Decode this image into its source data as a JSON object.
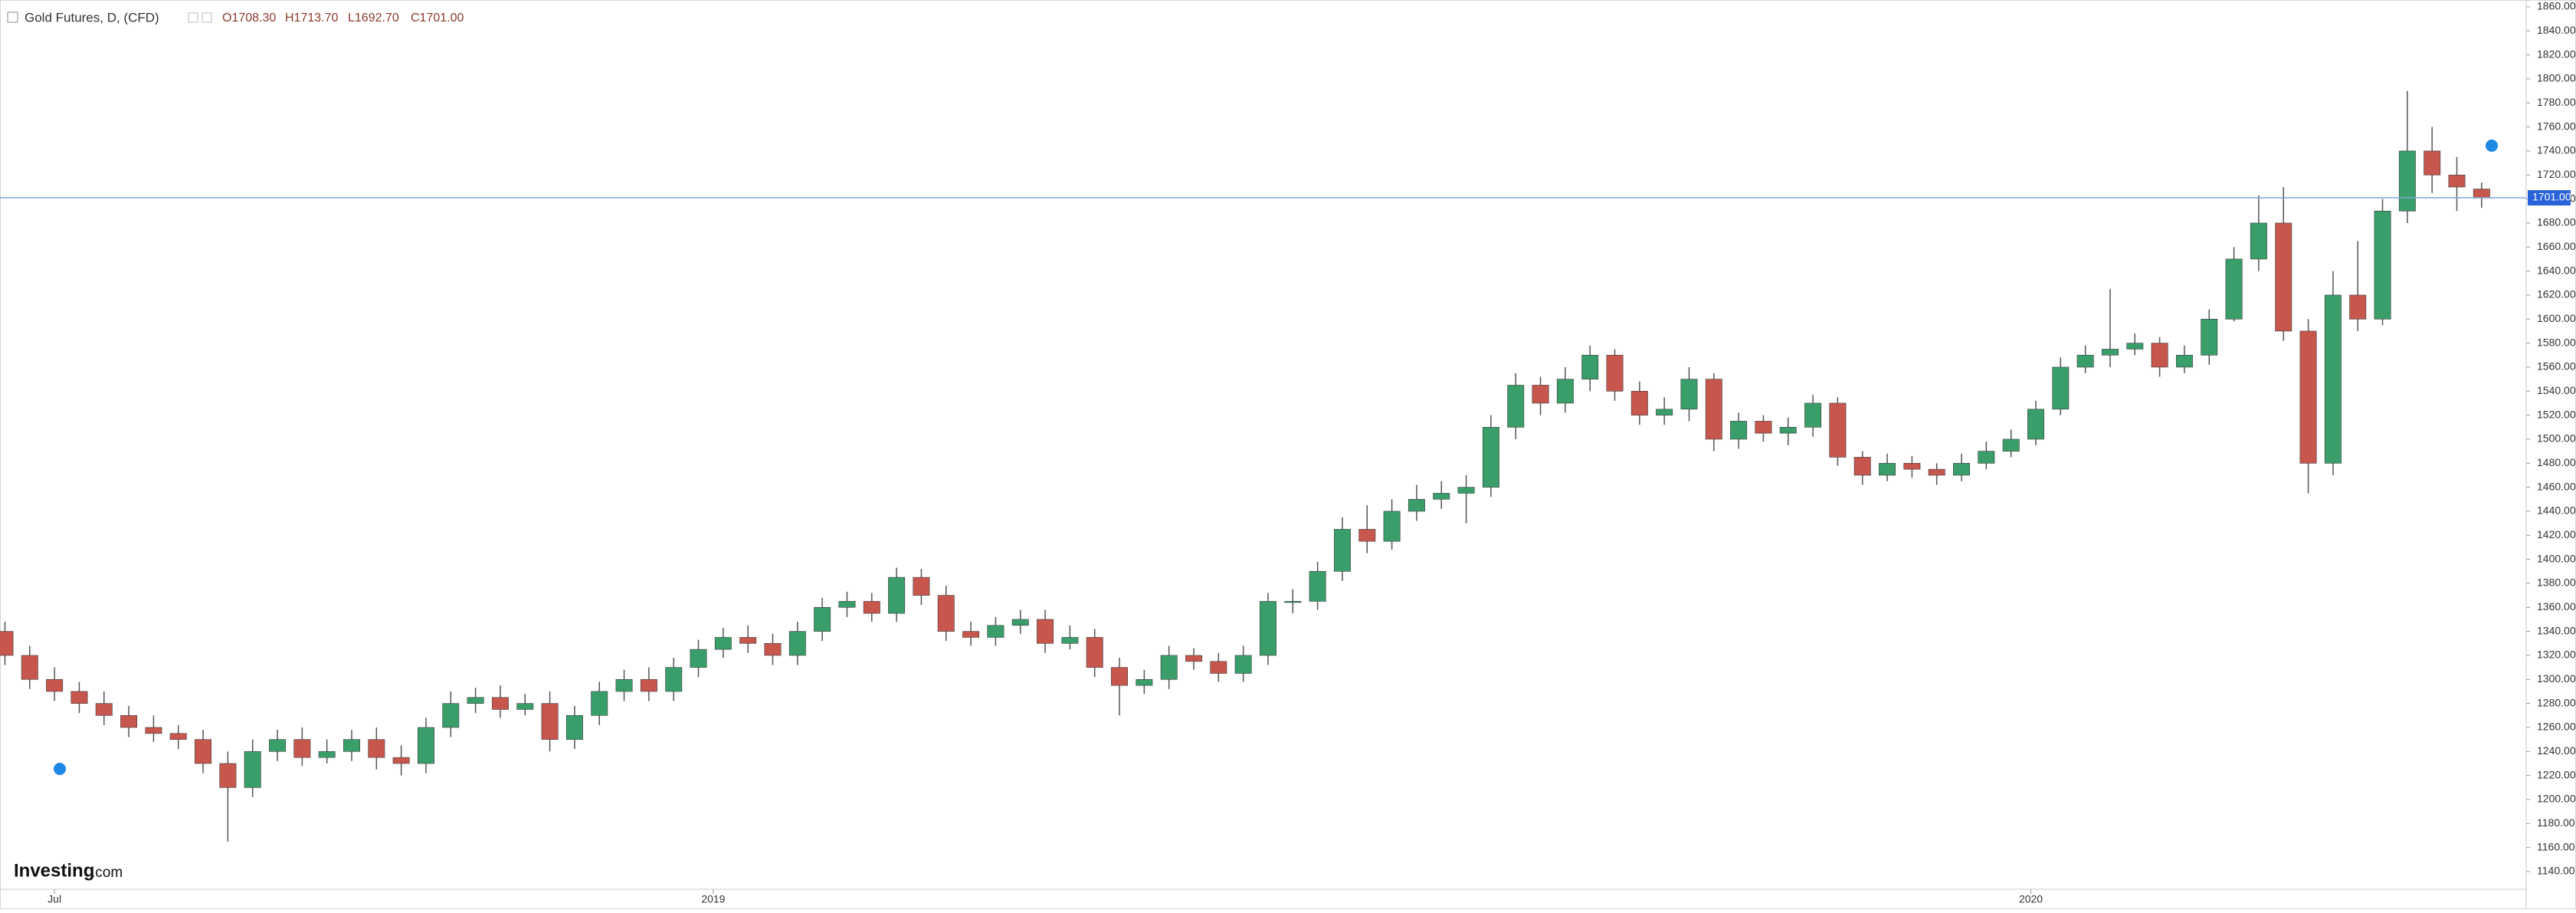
{
  "chart_data": {
    "type": "candlestick",
    "title": "Gold Futures, D, (CFD)",
    "ohlc_labels": [
      "O1708.30",
      "H1713.70",
      "L1692.70",
      "C1701.00"
    ],
    "watermark": [
      "Investing",
      ".com"
    ],
    "up_color": "#3a9e6a",
    "down_color": "#c7564d",
    "open": [
      1340,
      1320,
      1300,
      1290,
      1280,
      1270,
      1260,
      1255,
      1250,
      1230,
      1210,
      1240,
      1250,
      1235,
      1240,
      1250,
      1235,
      1230,
      1260,
      1280,
      1285,
      1275,
      1280,
      1250,
      1270,
      1290,
      1300,
      1290,
      1310,
      1325,
      1335,
      1330,
      1320,
      1340,
      1360,
      1365,
      1355,
      1385,
      1370,
      1340,
      1335,
      1345,
      1350,
      1330,
      1335,
      1310,
      1295,
      1300,
      1320,
      1315,
      1305,
      1320,
      1365,
      1365,
      1390,
      1425,
      1415,
      1440,
      1450,
      1455,
      1460,
      1510,
      1545,
      1530,
      1550,
      1570,
      1540,
      1520,
      1525,
      1550,
      1500,
      1515,
      1505,
      1510,
      1530,
      1485,
      1470,
      1480,
      1475,
      1470,
      1480,
      1490,
      1500,
      1525,
      1560,
      1570,
      1575,
      1580,
      1560,
      1570,
      1600,
      1650,
      1680,
      1590,
      1480,
      1620,
      1600,
      1690,
      1740,
      1720,
      1708.3
    ],
    "high": [
      1348,
      1328,
      1310,
      1298,
      1290,
      1278,
      1270,
      1262,
      1258,
      1240,
      1250,
      1258,
      1260,
      1250,
      1258,
      1260,
      1245,
      1268,
      1290,
      1293,
      1295,
      1288,
      1290,
      1278,
      1298,
      1308,
      1310,
      1318,
      1333,
      1343,
      1345,
      1338,
      1348,
      1368,
      1373,
      1372,
      1393,
      1392,
      1378,
      1348,
      1352,
      1358,
      1358,
      1345,
      1342,
      1318,
      1308,
      1328,
      1326,
      1322,
      1328,
      1372,
      1375,
      1398,
      1435,
      1445,
      1450,
      1462,
      1465,
      1470,
      1520,
      1555,
      1552,
      1560,
      1578,
      1575,
      1548,
      1535,
      1560,
      1555,
      1522,
      1520,
      1518,
      1537,
      1535,
      1490,
      1488,
      1486,
      1480,
      1488,
      1498,
      1508,
      1532,
      1568,
      1578,
      1625,
      1588,
      1585,
      1578,
      1608,
      1660,
      1703,
      1710,
      1600,
      1640,
      1665,
      1700,
      1790,
      1760,
      1735,
      1713.7
    ],
    "low": [
      1312,
      1292,
      1282,
      1272,
      1262,
      1252,
      1248,
      1242,
      1222,
      1165,
      1202,
      1232,
      1228,
      1230,
      1232,
      1225,
      1220,
      1222,
      1252,
      1272,
      1268,
      1270,
      1240,
      1242,
      1262,
      1282,
      1282,
      1282,
      1302,
      1318,
      1322,
      1312,
      1312,
      1332,
      1352,
      1348,
      1348,
      1362,
      1332,
      1328,
      1328,
      1338,
      1322,
      1325,
      1302,
      1270,
      1288,
      1292,
      1308,
      1298,
      1298,
      1312,
      1355,
      1358,
      1382,
      1405,
      1408,
      1432,
      1442,
      1430,
      1452,
      1500,
      1520,
      1522,
      1540,
      1532,
      1512,
      1512,
      1515,
      1490,
      1492,
      1498,
      1495,
      1502,
      1478,
      1462,
      1465,
      1468,
      1462,
      1465,
      1475,
      1485,
      1495,
      1520,
      1555,
      1560,
      1570,
      1552,
      1555,
      1562,
      1598,
      1640,
      1582,
      1455,
      1470,
      1590,
      1595,
      1680,
      1705,
      1690,
      1692.7
    ],
    "close": [
      1320,
      1300,
      1290,
      1280,
      1270,
      1260,
      1255,
      1250,
      1230,
      1210,
      1240,
      1250,
      1235,
      1240,
      1250,
      1235,
      1230,
      1260,
      1280,
      1285,
      1275,
      1280,
      1250,
      1270,
      1290,
      1300,
      1290,
      1310,
      1325,
      1335,
      1330,
      1320,
      1340,
      1360,
      1365,
      1355,
      1385,
      1370,
      1340,
      1335,
      1345,
      1350,
      1330,
      1335,
      1310,
      1295,
      1300,
      1320,
      1315,
      1305,
      1320,
      1365,
      1365,
      1390,
      1425,
      1415,
      1440,
      1450,
      1455,
      1460,
      1510,
      1545,
      1530,
      1550,
      1570,
      1540,
      1520,
      1525,
      1550,
      1500,
      1515,
      1505,
      1510,
      1530,
      1485,
      1470,
      1480,
      1475,
      1470,
      1480,
      1490,
      1500,
      1525,
      1560,
      1570,
      1575,
      1580,
      1560,
      1570,
      1600,
      1650,
      1680,
      1590,
      1480,
      1620,
      1600,
      1690,
      1740,
      1720,
      1710,
      1701
    ],
    "last_price": {
      "value": 1701,
      "label": "1701.00"
    },
    "xlim": [
      -0.2,
      101.8
    ],
    "xticks": [
      {
        "value": 2,
        "label": "Jul"
      },
      {
        "value": 28.6,
        "label": "2019"
      },
      {
        "value": 81.8,
        "label": "2020"
      }
    ],
    "ylim": [
      1125.3,
      1865.7
    ],
    "yticks": [
      {
        "value": 1140,
        "label": "1140.00"
      },
      {
        "value": 1160,
        "label": "1160.00"
      },
      {
        "value": 1180,
        "label": "1180.00"
      },
      {
        "value": 1200,
        "label": "1200.00"
      },
      {
        "value": 1220,
        "label": "1220.00"
      },
      {
        "value": 1240,
        "label": "1240.00"
      },
      {
        "value": 1260,
        "label": "1260.00"
      },
      {
        "value": 1280,
        "label": "1280.00"
      },
      {
        "value": 1300,
        "label": "1300.00"
      },
      {
        "value": 1320,
        "label": "1320.00"
      },
      {
        "value": 1340,
        "label": "1340.00"
      },
      {
        "value": 1360,
        "label": "1360.00"
      },
      {
        "value": 1380,
        "label": "1380.00"
      },
      {
        "value": 1400,
        "label": "1400.00"
      },
      {
        "value": 1420,
        "label": "1420.00"
      },
      {
        "value": 1440,
        "label": "1440.00"
      },
      {
        "value": 1460,
        "label": "1460.00"
      },
      {
        "value": 1480,
        "label": "1480.00"
      },
      {
        "value": 1500,
        "label": "1500.00"
      },
      {
        "value": 1520,
        "label": "1520.00"
      },
      {
        "value": 1540,
        "label": "1540.00"
      },
      {
        "value": 1560,
        "label": "1560.00"
      },
      {
        "value": 1580,
        "label": "1580.00"
      },
      {
        "value": 1600,
        "label": "1600.00"
      },
      {
        "value": 1620,
        "label": "1620.00"
      },
      {
        "value": 1640,
        "label": "1640.00"
      },
      {
        "value": 1660,
        "label": "1660.00"
      },
      {
        "value": 1680,
        "label": "1680.00"
      },
      {
        "value": 1700,
        "label": "1700.00"
      },
      {
        "value": 1720,
        "label": "1720.00"
      },
      {
        "value": 1740,
        "label": "1740.00"
      },
      {
        "value": 1760,
        "label": "1760.00"
      },
      {
        "value": 1780,
        "label": "1780.00"
      },
      {
        "value": 1800,
        "label": "1800.00"
      },
      {
        "value": 1820,
        "label": "1820.00"
      },
      {
        "value": 1840,
        "label": "1840.00"
      },
      {
        "value": 1860,
        "label": "1860.00"
      }
    ]
  }
}
